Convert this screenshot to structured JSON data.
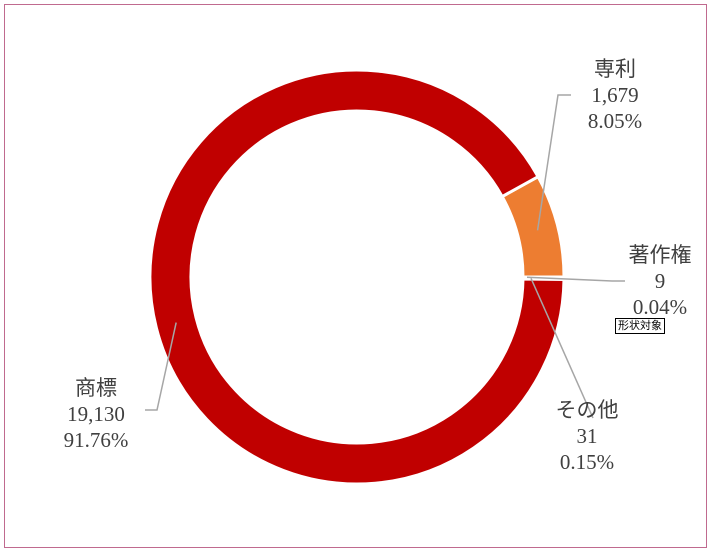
{
  "chart_data": {
    "type": "pie",
    "style": "doughnut",
    "slices": [
      {
        "name": "専利",
        "value": 1679,
        "value_label": "1,679",
        "percent_label": "8.05%",
        "color": "#ed7d31"
      },
      {
        "name": "著作権",
        "value": 9,
        "value_label": "9",
        "percent_label": "0.04%",
        "color": "#ffc000"
      },
      {
        "name": "その他",
        "value": 31,
        "value_label": "31",
        "percent_label": "0.15%",
        "color": "#c00000"
      },
      {
        "name": "商標",
        "value": 19130,
        "value_label": "19,130",
        "percent_label": "91.76%",
        "color": "#c00000"
      }
    ],
    "title": "",
    "legend": "none"
  },
  "tooltip": "形状対象",
  "colors": {
    "frame_border": "#c06a8f",
    "leader_line": "#a6a6a6",
    "label_text": "#404040"
  }
}
